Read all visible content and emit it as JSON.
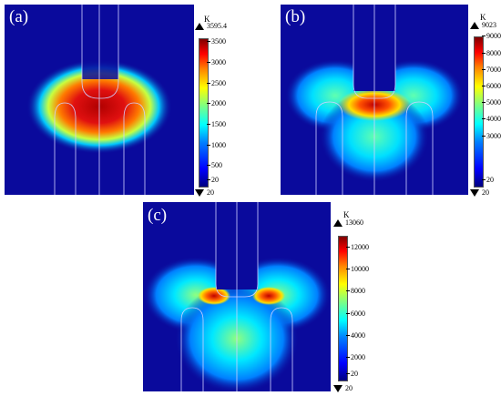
{
  "panels": [
    {
      "label": "(a)",
      "unit": "K",
      "max": "3595.4",
      "min": "20",
      "ticks": [
        "3500",
        "3000",
        "2500",
        "2000",
        "1500",
        "1000",
        "500",
        "20"
      ],
      "tick_values": [
        3500,
        3000,
        2500,
        2000,
        1500,
        1000,
        500,
        20
      ],
      "scale_max": 3595.4,
      "scale_min": 20
    },
    {
      "label": "(b)",
      "unit": "K",
      "max": "9023",
      "min": "20",
      "ticks": [
        "9000",
        "8000",
        "7000",
        "6000",
        "5000",
        "4000",
        "3000",
        "20"
      ],
      "tick_values": [
        9000,
        8000,
        7000,
        6000,
        5000,
        4000,
        3000,
        20
      ],
      "scale_max": 9023,
      "scale_min": 20
    },
    {
      "label": "(c)",
      "unit": "K",
      "max": "13060",
      "min": "20",
      "ticks": [
        "12000",
        "10000",
        "8000",
        "6000",
        "4000",
        "2000",
        "20"
      ],
      "tick_values": [
        12000,
        10000,
        8000,
        6000,
        4000,
        2000,
        20
      ],
      "scale_max": 13060,
      "scale_min": 20
    }
  ],
  "colors": {
    "background_field": "#0a0a9c",
    "hot": "#b00000",
    "outline": "#d0d0ff"
  }
}
